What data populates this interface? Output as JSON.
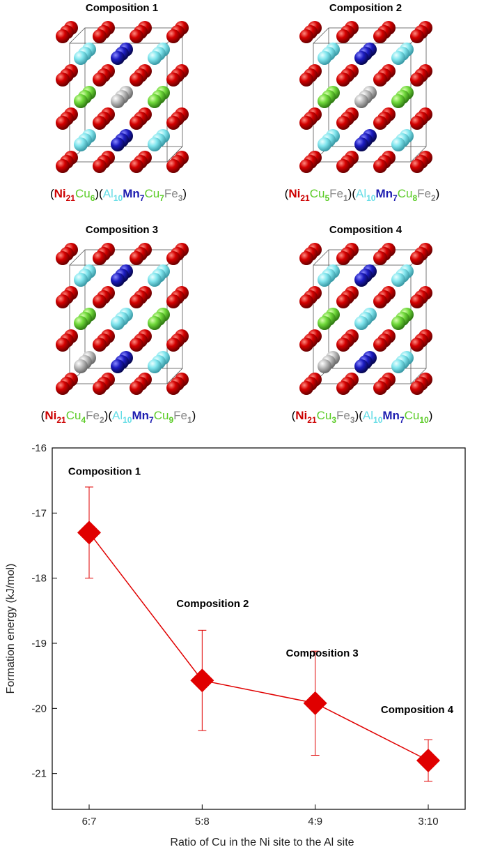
{
  "panels": [
    {
      "title": "Composition 1",
      "formula": [
        {
          "text": "(",
          "color": "#000000"
        },
        {
          "text": "Ni",
          "sub": "21",
          "color": "#cc0000"
        },
        {
          "text": "Cu",
          "sub": "6",
          "color": "#5ccc28"
        },
        {
          "text": ")(",
          "color": "#000000"
        },
        {
          "text": "Al",
          "sub": "10",
          "color": "#66dde6"
        },
        {
          "text": "Mn",
          "sub": "7",
          "color": "#1c1cb0"
        },
        {
          "text": "Cu",
          "sub": "7",
          "color": "#5ccc28"
        },
        {
          "text": "Fe",
          "sub": "3",
          "color": "#888888"
        },
        {
          "text": ")",
          "color": "#000000"
        }
      ]
    },
    {
      "title": "Composition 2",
      "formula": [
        {
          "text": "(",
          "color": "#000000"
        },
        {
          "text": "Ni",
          "sub": "21",
          "color": "#cc0000"
        },
        {
          "text": "Cu",
          "sub": "5",
          "color": "#5ccc28"
        },
        {
          "text": "Fe",
          "sub": "1",
          "color": "#888888"
        },
        {
          "text": ")(",
          "color": "#000000"
        },
        {
          "text": "Al",
          "sub": "10",
          "color": "#66dde6"
        },
        {
          "text": "Mn",
          "sub": "7",
          "color": "#1c1cb0"
        },
        {
          "text": "Cu",
          "sub": "8",
          "color": "#5ccc28"
        },
        {
          "text": "Fe",
          "sub": "2",
          "color": "#888888"
        },
        {
          "text": ")",
          "color": "#000000"
        }
      ]
    },
    {
      "title": "Composition 3",
      "formula": [
        {
          "text": "(",
          "color": "#000000"
        },
        {
          "text": "Ni",
          "sub": "21",
          "color": "#cc0000"
        },
        {
          "text": "Cu",
          "sub": "4",
          "color": "#5ccc28"
        },
        {
          "text": "Fe",
          "sub": "2",
          "color": "#888888"
        },
        {
          "text": ")(",
          "color": "#000000"
        },
        {
          "text": "Al",
          "sub": "10",
          "color": "#66dde6"
        },
        {
          "text": "Mn",
          "sub": "7",
          "color": "#1c1cb0"
        },
        {
          "text": "Cu",
          "sub": "9",
          "color": "#5ccc28"
        },
        {
          "text": "Fe",
          "sub": "1",
          "color": "#888888"
        },
        {
          "text": ")",
          "color": "#000000"
        }
      ]
    },
    {
      "title": "Composition 4",
      "formula": [
        {
          "text": "(",
          "color": "#000000"
        },
        {
          "text": "Ni",
          "sub": "21",
          "color": "#cc0000"
        },
        {
          "text": "Cu",
          "sub": "3",
          "color": "#5ccc28"
        },
        {
          "text": "Fe",
          "sub": "3",
          "color": "#888888"
        },
        {
          "text": ")(",
          "color": "#000000"
        },
        {
          "text": "Al",
          "sub": "10",
          "color": "#66dde6"
        },
        {
          "text": "Mn",
          "sub": "7",
          "color": "#1c1cb0"
        },
        {
          "text": "Cu",
          "sub": "10",
          "color": "#5ccc28"
        },
        {
          "text": ")",
          "color": "#000000"
        }
      ]
    }
  ],
  "chart_data": {
    "type": "line",
    "x_label": "Ratio of Cu in the Ni site to the Al site",
    "y_label": "Formation energy (kJ/mol)",
    "categories": [
      "6:7",
      "5:8",
      "4:9",
      "3:10"
    ],
    "values": [
      -17.3,
      -19.57,
      -19.92,
      -20.8
    ],
    "errors": [
      0.7,
      0.77,
      0.8,
      0.32
    ],
    "annotations": [
      "Composition 1",
      "Composition 2",
      "Composition 3",
      "Composition 4"
    ],
    "color": "#e00000",
    "marker": "diamond",
    "ylim": [
      -21.55,
      -16
    ],
    "yticks": [
      -21,
      -20,
      -19,
      -18,
      -17,
      -16
    ]
  }
}
